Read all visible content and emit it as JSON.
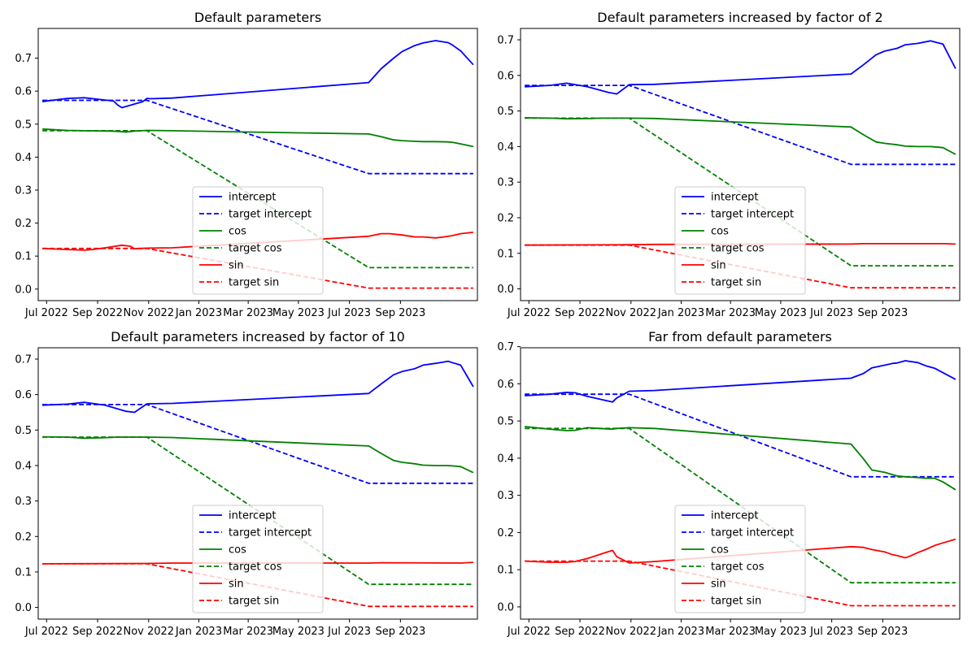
{
  "figure": {
    "layout": "2x2 grid of line charts"
  },
  "chart_data": [
    {
      "type": "line",
      "title": "Default parameters",
      "xlabel": "",
      "ylabel": "",
      "x_ticks": [
        "Jul 2022",
        "Sep 2022",
        "Nov 2022",
        "Jan 2023",
        "Mar 2023",
        "May 2023",
        "Jul 2023",
        "Sep 2023"
      ],
      "y_ticks": [
        "0.0",
        "0.1",
        "0.2",
        "0.3",
        "0.4",
        "0.5",
        "0.6",
        "0.7"
      ],
      "ylim": [
        -0.035,
        0.79
      ],
      "legend": "lower-center",
      "series": [
        {
          "name": "intercept",
          "color": "#0000ff",
          "style": "solid",
          "t": [
            -1,
            0,
            5,
            9,
            16,
            17,
            18,
            23,
            24,
            25,
            30,
            77,
            80,
            83,
            85,
            88,
            90,
            93,
            96,
            97,
            99,
            102
          ],
          "values": [
            0.568,
            0.57,
            0.578,
            0.58,
            0.57,
            0.558,
            0.55,
            0.568,
            0.578,
            0.577,
            0.579,
            0.626,
            0.668,
            0.7,
            0.72,
            0.738,
            0.746,
            0.753,
            0.747,
            0.74,
            0.722,
            0.68
          ]
        },
        {
          "name": "target intercept",
          "color": "#0000ff",
          "style": "dashed",
          "t": [
            -1,
            24,
            77,
            102
          ],
          "values": [
            0.572,
            0.572,
            0.35,
            0.35
          ]
        },
        {
          "name": "cos",
          "color": "#008000",
          "style": "solid",
          "t": [
            -1,
            5,
            9,
            15,
            17,
            19,
            21,
            24,
            30,
            77,
            80,
            83,
            85,
            88,
            90,
            93,
            96,
            97,
            99,
            102
          ],
          "values": [
            0.485,
            0.481,
            0.48,
            0.479,
            0.478,
            0.476,
            0.479,
            0.481,
            0.48,
            0.47,
            0.462,
            0.452,
            0.45,
            0.448,
            0.447,
            0.447,
            0.446,
            0.445,
            0.44,
            0.432
          ]
        },
        {
          "name": "target cos",
          "color": "#008000",
          "style": "dashed",
          "t": [
            -1,
            24,
            77,
            102
          ],
          "values": [
            0.48,
            0.48,
            0.065,
            0.065
          ]
        },
        {
          "name": "sin",
          "color": "#ff0000",
          "style": "solid",
          "t": [
            -1,
            5,
            9,
            11,
            14,
            18,
            20,
            21,
            24,
            30,
            77,
            80,
            82,
            85,
            87,
            88,
            90,
            91,
            93,
            95,
            97,
            99,
            102
          ],
          "values": [
            0.123,
            0.12,
            0.118,
            0.12,
            0.125,
            0.133,
            0.13,
            0.122,
            0.124,
            0.125,
            0.16,
            0.168,
            0.168,
            0.164,
            0.16,
            0.158,
            0.158,
            0.157,
            0.155,
            0.158,
            0.162,
            0.168,
            0.172
          ]
        },
        {
          "name": "target sin",
          "color": "#ff0000",
          "style": "dashed",
          "t": [
            -1,
            24,
            77,
            102
          ],
          "values": [
            0.123,
            0.123,
            0.003,
            0.003
          ]
        }
      ]
    },
    {
      "type": "line",
      "title": "Default parameters increased by factor of 2",
      "xlabel": "",
      "ylabel": "",
      "x_ticks": [
        "Jul 2022",
        "Sep 2022",
        "Nov 2022",
        "Jan 2023",
        "Mar 2023",
        "May 2023",
        "Jul 2023",
        "Sep 2023"
      ],
      "y_ticks": [
        "0.0",
        "0.1",
        "0.2",
        "0.3",
        "0.4",
        "0.5",
        "0.6",
        "0.7"
      ],
      "ylim": [
        -0.033,
        0.732
      ],
      "legend": "lower-center",
      "series": [
        {
          "name": "intercept",
          "color": "#0000ff",
          "style": "solid",
          "t": [
            -1,
            5,
            9,
            14,
            19,
            21,
            24,
            30,
            77,
            80,
            83,
            85,
            88,
            90,
            93,
            96,
            97,
            99,
            102
          ],
          "values": [
            0.568,
            0.572,
            0.578,
            0.568,
            0.552,
            0.548,
            0.574,
            0.575,
            0.604,
            0.63,
            0.658,
            0.668,
            0.676,
            0.686,
            0.69,
            0.697,
            0.694,
            0.688,
            0.619
          ]
        },
        {
          "name": "target intercept",
          "color": "#0000ff",
          "style": "dashed",
          "t": [
            -1,
            24,
            77,
            102
          ],
          "values": [
            0.572,
            0.572,
            0.35,
            0.35
          ]
        },
        {
          "name": "cos",
          "color": "#008000",
          "style": "solid",
          "t": [
            -1,
            5,
            9,
            15,
            17,
            24,
            30,
            77,
            80,
            83,
            85,
            88,
            90,
            93,
            96,
            97,
            99,
            102
          ],
          "values": [
            0.481,
            0.48,
            0.478,
            0.479,
            0.48,
            0.48,
            0.479,
            0.455,
            0.433,
            0.413,
            0.409,
            0.405,
            0.401,
            0.4,
            0.4,
            0.399,
            0.397,
            0.378
          ]
        },
        {
          "name": "target cos",
          "color": "#008000",
          "style": "dashed",
          "t": [
            -1,
            24,
            77,
            102
          ],
          "values": [
            0.48,
            0.48,
            0.065,
            0.065
          ]
        },
        {
          "name": "sin",
          "color": "#ff0000",
          "style": "solid",
          "t": [
            -1,
            24,
            30,
            77,
            80,
            99,
            102
          ],
          "values": [
            0.123,
            0.124,
            0.125,
            0.126,
            0.127,
            0.127,
            0.126
          ]
        },
        {
          "name": "target sin",
          "color": "#ff0000",
          "style": "dashed",
          "t": [
            -1,
            24,
            77,
            102
          ],
          "values": [
            0.123,
            0.123,
            0.003,
            0.003
          ]
        }
      ]
    },
    {
      "type": "line",
      "title": "Default parameters increased by factor of 10",
      "xlabel": "",
      "ylabel": "",
      "x_ticks": [
        "Jul 2022",
        "Sep 2022",
        "Nov 2022",
        "Jan 2023",
        "Mar 2023",
        "May 2023",
        "Jul 2023",
        "Sep 2023"
      ],
      "y_ticks": [
        "0.0",
        "0.1",
        "0.2",
        "0.3",
        "0.4",
        "0.5",
        "0.6",
        "0.7"
      ],
      "ylim": [
        -0.033,
        0.732
      ],
      "legend": "lower-center",
      "series": [
        {
          "name": "intercept",
          "color": "#0000ff",
          "style": "solid",
          "t": [
            -1,
            5,
            9,
            14,
            19,
            21,
            24,
            30,
            77,
            80,
            83,
            85,
            88,
            90,
            93,
            96,
            97,
            99,
            102
          ],
          "values": [
            0.57,
            0.573,
            0.578,
            0.57,
            0.553,
            0.55,
            0.574,
            0.575,
            0.603,
            0.63,
            0.656,
            0.665,
            0.673,
            0.683,
            0.688,
            0.694,
            0.69,
            0.683,
            0.622
          ]
        },
        {
          "name": "target intercept",
          "color": "#0000ff",
          "style": "dashed",
          "t": [
            -1,
            24,
            77,
            102
          ],
          "values": [
            0.572,
            0.572,
            0.35,
            0.35
          ]
        },
        {
          "name": "cos",
          "color": "#008000",
          "style": "solid",
          "t": [
            -1,
            5,
            9,
            15,
            17,
            24,
            30,
            77,
            80,
            83,
            85,
            88,
            90,
            93,
            96,
            97,
            99,
            102
          ],
          "values": [
            0.481,
            0.48,
            0.477,
            0.479,
            0.48,
            0.48,
            0.479,
            0.455,
            0.434,
            0.414,
            0.409,
            0.405,
            0.401,
            0.4,
            0.4,
            0.399,
            0.397,
            0.38
          ]
        },
        {
          "name": "target cos",
          "color": "#008000",
          "style": "dashed",
          "t": [
            -1,
            24,
            77,
            102
          ],
          "values": [
            0.48,
            0.48,
            0.065,
            0.065
          ]
        },
        {
          "name": "sin",
          "color": "#ff0000",
          "style": "solid",
          "t": [
            -1,
            24,
            30,
            77,
            80,
            99,
            102
          ],
          "values": [
            0.123,
            0.124,
            0.125,
            0.125,
            0.126,
            0.125,
            0.127
          ]
        },
        {
          "name": "target sin",
          "color": "#ff0000",
          "style": "dashed",
          "t": [
            -1,
            24,
            77,
            102
          ],
          "values": [
            0.123,
            0.123,
            0.003,
            0.003
          ]
        }
      ]
    },
    {
      "type": "line",
      "title": "Far from default parameters",
      "xlabel": "",
      "ylabel": "",
      "x_ticks": [
        "Jul 2022",
        "Sep 2022",
        "Nov 2022",
        "Jan 2023",
        "Mar 2023",
        "May 2023",
        "Jul 2023",
        "Sep 2023"
      ],
      "y_ticks": [
        "0.0",
        "0.1",
        "0.2",
        "0.3",
        "0.4",
        "0.5",
        "0.6",
        "0.7"
      ],
      "ylim": [
        -0.033,
        0.697
      ],
      "legend": "lower-center",
      "series": [
        {
          "name": "intercept",
          "color": "#0000ff",
          "style": "solid",
          "t": [
            -1,
            5,
            9,
            11,
            14,
            18,
            20,
            21,
            24,
            30,
            77,
            80,
            82,
            85,
            87,
            88,
            90,
            93,
            95,
            97,
            99,
            102
          ],
          "values": [
            0.568,
            0.572,
            0.577,
            0.576,
            0.566,
            0.556,
            0.551,
            0.562,
            0.58,
            0.582,
            0.615,
            0.628,
            0.643,
            0.65,
            0.655,
            0.656,
            0.662,
            0.657,
            0.648,
            0.642,
            0.63,
            0.612
          ]
        },
        {
          "name": "target intercept",
          "color": "#0000ff",
          "style": "dashed",
          "t": [
            -1,
            24,
            77,
            102
          ],
          "values": [
            0.572,
            0.572,
            0.35,
            0.35
          ]
        },
        {
          "name": "cos",
          "color": "#008000",
          "style": "solid",
          "t": [
            -1,
            5,
            9,
            11,
            14,
            18,
            20,
            21,
            24,
            30,
            77,
            80,
            82,
            85,
            88,
            90,
            93,
            95,
            97,
            99,
            102
          ],
          "values": [
            0.485,
            0.478,
            0.474,
            0.475,
            0.482,
            0.479,
            0.478,
            0.48,
            0.482,
            0.48,
            0.438,
            0.398,
            0.368,
            0.362,
            0.352,
            0.35,
            0.348,
            0.346,
            0.346,
            0.336,
            0.315
          ]
        },
        {
          "name": "target cos",
          "color": "#008000",
          "style": "dashed",
          "t": [
            -1,
            24,
            77,
            102
          ],
          "values": [
            0.48,
            0.48,
            0.065,
            0.065
          ]
        },
        {
          "name": "sin",
          "color": "#ff0000",
          "style": "solid",
          "t": [
            -1,
            5,
            9,
            11,
            14,
            18,
            20,
            21,
            24,
            30,
            77,
            80,
            82,
            85,
            87,
            88,
            90,
            91,
            93,
            95,
            97,
            99,
            102
          ],
          "values": [
            0.123,
            0.12,
            0.12,
            0.122,
            0.13,
            0.145,
            0.152,
            0.135,
            0.118,
            0.122,
            0.162,
            0.16,
            0.154,
            0.148,
            0.14,
            0.138,
            0.132,
            0.136,
            0.146,
            0.155,
            0.165,
            0.172,
            0.182
          ]
        },
        {
          "name": "target sin",
          "color": "#ff0000",
          "style": "dashed",
          "t": [
            -1,
            24,
            77,
            102
          ],
          "values": [
            0.123,
            0.123,
            0.003,
            0.003
          ]
        }
      ]
    }
  ]
}
